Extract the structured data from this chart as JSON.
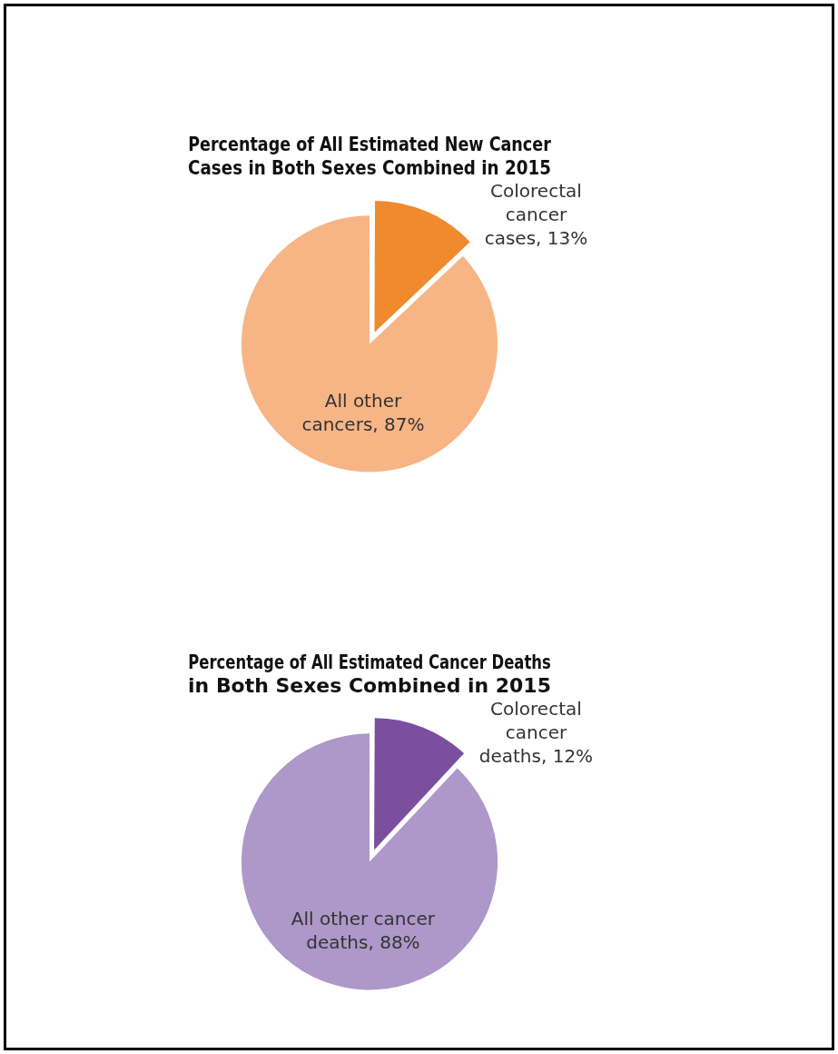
{
  "chart_data": [
    {
      "type": "pie",
      "title": "Percentage of All Estimated New Cancer Cases in Both Sexes Combined in 2015",
      "categories": [
        "Colorectal cancer cases",
        "All other cancers"
      ],
      "values": [
        13,
        87
      ],
      "value_labels": [
        "13%",
        "87%"
      ],
      "colors": [
        "#f08a2c",
        "#f7b586"
      ],
      "legend": false
    },
    {
      "type": "pie",
      "title": "Percentage of All Estimated Cancer Deaths in Both Sexes Combined in 2015",
      "categories": [
        "Colorectal cancer deaths",
        "All other cancer deaths"
      ],
      "values": [
        12,
        88
      ],
      "value_labels": [
        "12%",
        "88%"
      ],
      "colors": [
        "#7b4f9d",
        "#ad98c9"
      ],
      "legend": false
    }
  ]
}
